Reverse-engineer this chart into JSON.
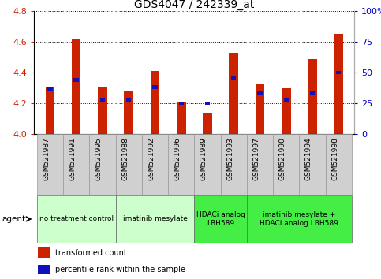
{
  "title": "GDS4047 / 242339_at",
  "samples": [
    "GSM521987",
    "GSM521991",
    "GSM521995",
    "GSM521988",
    "GSM521992",
    "GSM521996",
    "GSM521989",
    "GSM521993",
    "GSM521997",
    "GSM521990",
    "GSM521994",
    "GSM521998"
  ],
  "red_values": [
    4.31,
    4.62,
    4.31,
    4.28,
    4.41,
    4.21,
    4.14,
    4.53,
    4.33,
    4.3,
    4.49,
    4.65
  ],
  "blue_percentiles": [
    37,
    44,
    28,
    28,
    38,
    25,
    25,
    45,
    33,
    28,
    33,
    50
  ],
  "ylim_left": [
    4.0,
    4.8
  ],
  "ylim_right": [
    0,
    100
  ],
  "yticks_left": [
    4.0,
    4.2,
    4.4,
    4.6,
    4.8
  ],
  "yticks_right": [
    0,
    25,
    50,
    75,
    100
  ],
  "ytick_labels_right": [
    "0",
    "25",
    "50",
    "75",
    "100%"
  ],
  "bar_color_red": "#cc2200",
  "bar_color_blue": "#1111bb",
  "axis_color_left": "#cc2200",
  "axis_color_right": "#0000cc",
  "groups": [
    {
      "label": "no treatment control",
      "start": 0,
      "end": 3,
      "color": "#ccffcc"
    },
    {
      "label": "imatinib mesylate",
      "start": 3,
      "end": 6,
      "color": "#ccffcc"
    },
    {
      "label": "HDACi analog\nLBH589",
      "start": 6,
      "end": 8,
      "color": "#44ee44"
    },
    {
      "label": "imatinib mesylate +\nHDACi analog LBH589",
      "start": 8,
      "end": 12,
      "color": "#44ee44"
    }
  ],
  "legend_labels": [
    "transformed count",
    "percentile rank within the sample"
  ],
  "legend_colors": [
    "#cc2200",
    "#1111bb"
  ],
  "bar_width": 0.35,
  "xticklabel_fontsize": 6.5,
  "title_fontsize": 10,
  "tick_gray_bg": "#d0d0d0",
  "spine_color": "#aaaaaa"
}
